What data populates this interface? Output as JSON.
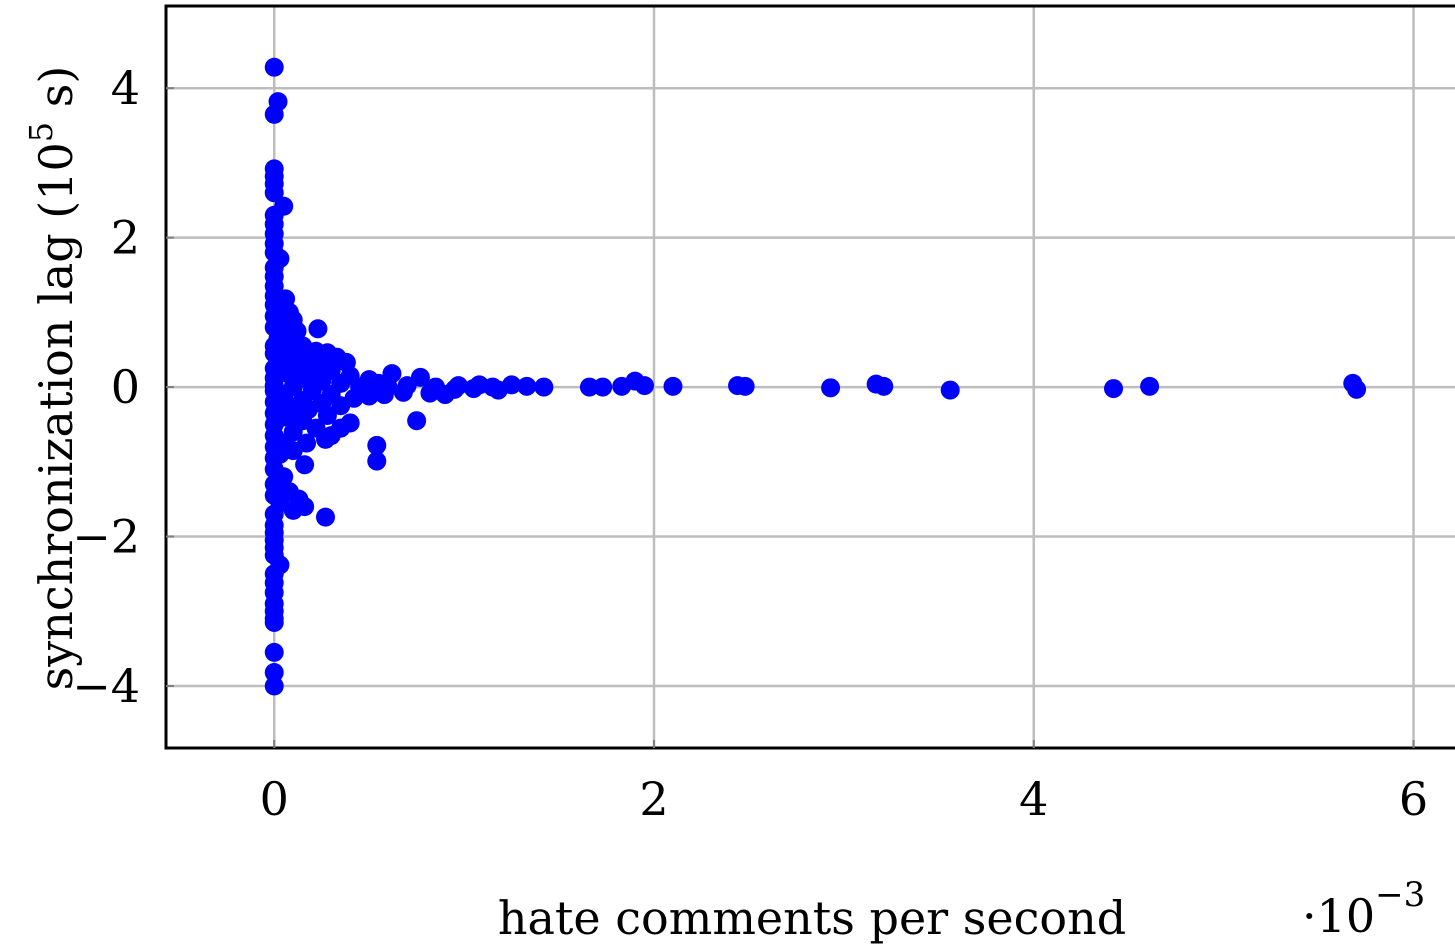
{
  "chart_data": {
    "type": "scatter",
    "title": "",
    "xlabel": "hate comments per second",
    "ylabel_main": "synchronization lag (10",
    "ylabel_exp": "5",
    "ylabel_tail": " s)",
    "x_multiplier_base": "·10",
    "x_multiplier_exp": "−3",
    "xlim": [
      -0.57,
      6.25
    ],
    "ylim": [
      -4.83,
      5.1
    ],
    "x_ticks": [
      {
        "value": 0,
        "label": "0"
      },
      {
        "value": 2,
        "label": "2"
      },
      {
        "value": 4,
        "label": "4"
      },
      {
        "value": 6,
        "label": "6"
      }
    ],
    "y_ticks": [
      {
        "value": -4,
        "label": "−4"
      },
      {
        "value": -2,
        "label": "−2"
      },
      {
        "value": 0,
        "label": "0"
      },
      {
        "value": 2,
        "label": "2"
      },
      {
        "value": 4,
        "label": "4"
      }
    ],
    "grid": true,
    "marker_color": "#0000ff",
    "series": [
      {
        "points": [
          [
            0.0,
            4.28
          ],
          [
            0.02,
            3.82
          ],
          [
            0.0,
            3.65
          ],
          [
            0.0,
            2.92
          ],
          [
            0.0,
            2.82
          ],
          [
            0.0,
            2.72
          ],
          [
            0.0,
            2.6
          ],
          [
            0.05,
            2.42
          ],
          [
            0.0,
            2.3
          ],
          [
            0.0,
            2.18
          ],
          [
            0.0,
            2.05
          ],
          [
            0.0,
            1.92
          ],
          [
            0.0,
            1.8
          ],
          [
            0.03,
            1.72
          ],
          [
            0.0,
            1.6
          ],
          [
            0.0,
            1.48
          ],
          [
            0.0,
            1.35
          ],
          [
            0.0,
            1.22
          ],
          [
            0.06,
            1.18
          ],
          [
            0.0,
            1.1
          ],
          [
            0.04,
            1.05
          ],
          [
            0.08,
            1.0
          ],
          [
            0.0,
            0.95
          ],
          [
            0.1,
            0.9
          ],
          [
            0.05,
            0.85
          ],
          [
            0.0,
            0.8
          ],
          [
            0.12,
            0.75
          ],
          [
            0.07,
            0.7
          ],
          [
            0.23,
            0.78
          ],
          [
            0.02,
            0.65
          ],
          [
            0.1,
            0.6
          ],
          [
            0.0,
            0.55
          ],
          [
            0.15,
            0.55
          ],
          [
            0.05,
            0.5
          ],
          [
            0.22,
            0.48
          ],
          [
            0.28,
            0.46
          ],
          [
            0.0,
            0.45
          ],
          [
            0.1,
            0.42
          ],
          [
            0.33,
            0.4
          ],
          [
            0.18,
            0.38
          ],
          [
            0.03,
            0.35
          ],
          [
            0.38,
            0.33
          ],
          [
            0.25,
            0.3
          ],
          [
            0.12,
            0.28
          ],
          [
            0.0,
            0.25
          ],
          [
            0.3,
            0.22
          ],
          [
            0.2,
            0.2
          ],
          [
            0.07,
            0.18
          ],
          [
            0.62,
            0.18
          ],
          [
            0.4,
            0.15
          ],
          [
            0.0,
            0.12
          ],
          [
            0.15,
            0.12
          ],
          [
            0.77,
            0.13
          ],
          [
            0.5,
            0.1
          ],
          [
            0.25,
            0.08
          ],
          [
            0.55,
            0.05
          ],
          [
            0.35,
            0.05
          ],
          [
            0.0,
            0.02
          ],
          [
            0.1,
            0.0
          ],
          [
            0.45,
            0.0
          ],
          [
            0.6,
            0.0
          ],
          [
            0.7,
            0.02
          ],
          [
            0.85,
            0.0
          ],
          [
            0.97,
            0.02
          ],
          [
            1.08,
            0.03
          ],
          [
            1.15,
            0.0
          ],
          [
            1.25,
            0.03
          ],
          [
            1.33,
            0.01
          ],
          [
            1.42,
            0.0
          ],
          [
            0.82,
            -0.08
          ],
          [
            0.95,
            -0.03
          ],
          [
            1.05,
            -0.02
          ],
          [
            1.18,
            -0.04
          ],
          [
            0.9,
            -0.1
          ],
          [
            0.68,
            -0.07
          ],
          [
            0.58,
            -0.1
          ],
          [
            0.5,
            -0.12
          ],
          [
            0.42,
            -0.15
          ],
          [
            0.3,
            -0.1
          ],
          [
            0.2,
            -0.05
          ],
          [
            0.0,
            -0.05
          ],
          [
            0.05,
            -0.1
          ],
          [
            0.15,
            -0.18
          ],
          [
            0.25,
            -0.22
          ],
          [
            0.35,
            -0.25
          ],
          [
            0.0,
            -0.2
          ],
          [
            0.08,
            -0.25
          ],
          [
            0.18,
            -0.3
          ],
          [
            0.1,
            -0.35
          ],
          [
            0.0,
            -0.35
          ],
          [
            0.28,
            -0.38
          ],
          [
            0.05,
            -0.4
          ],
          [
            0.4,
            -0.48
          ],
          [
            0.15,
            -0.45
          ],
          [
            0.35,
            -0.55
          ],
          [
            0.0,
            -0.5
          ],
          [
            0.22,
            -0.55
          ],
          [
            0.75,
            -0.45
          ],
          [
            0.1,
            -0.6
          ],
          [
            0.3,
            -0.65
          ],
          [
            0.0,
            -0.65
          ],
          [
            0.27,
            -0.7
          ],
          [
            0.05,
            -0.75
          ],
          [
            0.17,
            -0.75
          ],
          [
            0.54,
            -0.78
          ],
          [
            0.0,
            -0.8
          ],
          [
            0.1,
            -0.85
          ],
          [
            0.03,
            -0.9
          ],
          [
            0.0,
            -0.95
          ],
          [
            0.54,
            -0.99
          ],
          [
            0.16,
            -1.04
          ],
          [
            0.0,
            -1.1
          ],
          [
            0.05,
            -1.2
          ],
          [
            0.0,
            -1.3
          ],
          [
            0.08,
            -1.4
          ],
          [
            0.0,
            -1.45
          ],
          [
            0.13,
            -1.5
          ],
          [
            0.03,
            -1.55
          ],
          [
            0.16,
            -1.6
          ],
          [
            0.1,
            -1.65
          ],
          [
            0.0,
            -1.7
          ],
          [
            0.27,
            -1.74
          ],
          [
            0.0,
            -1.85
          ],
          [
            0.0,
            -1.95
          ],
          [
            0.0,
            -2.05
          ],
          [
            0.0,
            -2.15
          ],
          [
            0.0,
            -2.25
          ],
          [
            0.03,
            -2.38
          ],
          [
            0.0,
            -2.5
          ],
          [
            0.0,
            -2.62
          ],
          [
            0.0,
            -2.75
          ],
          [
            0.0,
            -2.9
          ],
          [
            0.0,
            -3.0
          ],
          [
            0.0,
            -3.1
          ],
          [
            0.0,
            -3.15
          ],
          [
            0.0,
            -3.55
          ],
          [
            0.0,
            -3.82
          ],
          [
            0.0,
            -4.0
          ],
          [
            1.66,
            0.0
          ],
          [
            1.73,
            0.0
          ],
          [
            1.83,
            0.01
          ],
          [
            1.9,
            0.08
          ],
          [
            1.95,
            0.02
          ],
          [
            2.1,
            0.01
          ],
          [
            2.44,
            0.02
          ],
          [
            2.48,
            0.01
          ],
          [
            2.93,
            -0.01
          ],
          [
            3.17,
            0.04
          ],
          [
            3.21,
            0.01
          ],
          [
            3.56,
            -0.04
          ],
          [
            4.42,
            -0.02
          ],
          [
            4.61,
            0.01
          ],
          [
            5.68,
            0.05
          ],
          [
            5.7,
            -0.03
          ]
        ]
      }
    ]
  }
}
